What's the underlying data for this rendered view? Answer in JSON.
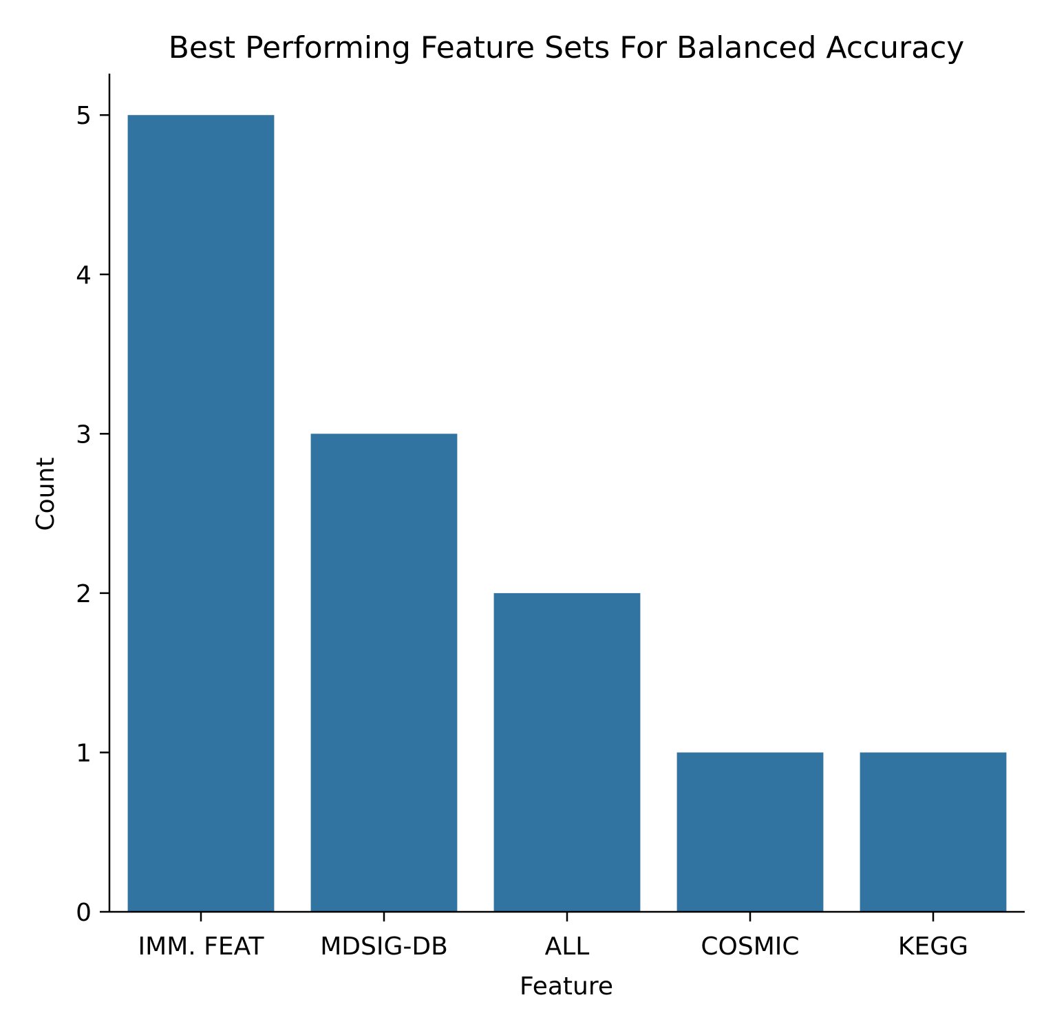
{
  "chart_data": {
    "type": "bar",
    "title": "Best Performing Feature Sets For Balanced Accuracy",
    "xlabel": "Feature",
    "ylabel": "Count",
    "categories": [
      "IMM. FEAT",
      "MDSIG-DB",
      "ALL",
      "COSMIC",
      "KEGG"
    ],
    "values": [
      5,
      3,
      2,
      1,
      1
    ],
    "ylim": [
      0,
      5.26
    ],
    "yticks": [
      "0",
      "1",
      "2",
      "3",
      "4",
      "5"
    ],
    "grid": false,
    "legend": "none",
    "bar_color": "#3274a1",
    "axis_color": "#000000"
  }
}
